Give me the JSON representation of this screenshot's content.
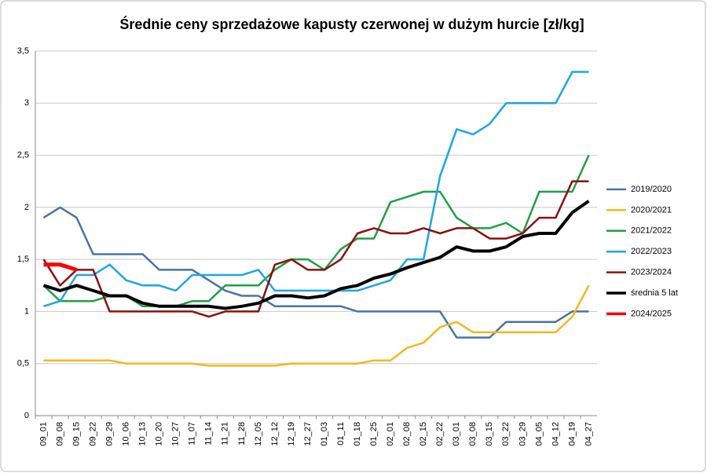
{
  "chart_data": {
    "type": "line",
    "title": "Średnie ceny sprzedażowe kapusty czerwonej w dużym hurcie [zł/kg]",
    "categories": [
      "09_01",
      "09_08",
      "09_15",
      "09_22",
      "09_29",
      "10_06",
      "10_13",
      "10_20",
      "10_27",
      "11_07",
      "11_14",
      "11_21",
      "11_28",
      "12_05",
      "12_12",
      "12_19",
      "12_27",
      "01_03",
      "01_11",
      "01_18",
      "01_25",
      "02_01",
      "02_08",
      "02_15",
      "02_22",
      "03_01",
      "03_08",
      "03_15",
      "03_22",
      "03_29",
      "04_05",
      "04_12",
      "04_19",
      "04_27"
    ],
    "series": [
      {
        "name": "2019/2020",
        "color": "#4a72a8",
        "width": 2.5,
        "values": [
          1.9,
          2.0,
          1.9,
          1.55,
          1.55,
          1.55,
          1.55,
          1.4,
          1.4,
          1.4,
          1.3,
          1.2,
          1.15,
          1.15,
          1.05,
          1.05,
          1.05,
          1.05,
          1.05,
          1.0,
          1.0,
          1.0,
          1.0,
          1.0,
          1.0,
          0.75,
          0.75,
          0.75,
          0.9,
          0.9,
          0.9,
          0.9,
          1.0,
          1.0
        ]
      },
      {
        "name": "2020/2021",
        "color": "#f5b71c",
        "width": 2.5,
        "values": [
          0.53,
          0.53,
          0.53,
          0.53,
          0.53,
          0.5,
          0.5,
          0.5,
          0.5,
          0.5,
          0.48,
          0.48,
          0.48,
          0.48,
          0.48,
          0.5,
          0.5,
          0.5,
          0.5,
          0.5,
          0.53,
          0.53,
          0.65,
          0.7,
          0.85,
          0.9,
          0.8,
          0.8,
          0.8,
          0.8,
          0.8,
          0.8,
          0.95,
          1.25
        ]
      },
      {
        "name": "2021/2022",
        "color": "#1fa044",
        "width": 2.5,
        "values": [
          1.25,
          1.1,
          1.1,
          1.1,
          1.15,
          1.15,
          1.05,
          1.05,
          1.05,
          1.1,
          1.1,
          1.25,
          1.25,
          1.25,
          1.4,
          1.5,
          1.5,
          1.4,
          1.6,
          1.7,
          1.7,
          2.05,
          2.1,
          2.15,
          2.15,
          1.9,
          1.8,
          1.8,
          1.85,
          1.75,
          2.15,
          2.15,
          2.15,
          2.5
        ]
      },
      {
        "name": "2022/2023",
        "color": "#1ba7e0",
        "width": 2.5,
        "values": [
          1.05,
          1.1,
          1.35,
          1.35,
          1.45,
          1.3,
          1.25,
          1.25,
          1.2,
          1.35,
          1.35,
          1.35,
          1.35,
          1.4,
          1.2,
          1.2,
          1.2,
          1.2,
          1.2,
          1.2,
          1.25,
          1.3,
          1.5,
          1.5,
          2.3,
          2.75,
          2.7,
          2.8,
          3.0,
          3.0,
          3.0,
          3.0,
          3.3,
          3.3
        ]
      },
      {
        "name": "2023/2024",
        "color": "#8b1010",
        "width": 2.5,
        "values": [
          1.5,
          1.25,
          1.4,
          1.4,
          1.0,
          1.0,
          1.0,
          1.0,
          1.0,
          1.0,
          0.95,
          1.0,
          1.0,
          1.0,
          1.45,
          1.5,
          1.4,
          1.4,
          1.5,
          1.75,
          1.8,
          1.75,
          1.75,
          1.8,
          1.75,
          1.8,
          1.8,
          1.7,
          1.7,
          1.75,
          1.9,
          1.9,
          2.25,
          2.25
        ]
      },
      {
        "name": "średnia 5 lat",
        "color": "#000000",
        "width": 4,
        "values": [
          1.25,
          1.2,
          1.25,
          1.2,
          1.15,
          1.15,
          1.08,
          1.05,
          1.05,
          1.05,
          1.05,
          1.03,
          1.05,
          1.08,
          1.15,
          1.15,
          1.13,
          1.15,
          1.22,
          1.25,
          1.32,
          1.36,
          1.42,
          1.47,
          1.52,
          1.62,
          1.58,
          1.58,
          1.62,
          1.72,
          1.75,
          1.75,
          1.95,
          2.06
        ]
      },
      {
        "name": "2024/2025",
        "color": "#ff0000",
        "width": 5,
        "values": [
          1.45,
          1.45,
          1.4,
          null,
          null,
          null,
          null,
          null,
          null,
          null,
          null,
          null,
          null,
          null,
          null,
          null,
          null,
          null,
          null,
          null,
          null,
          null,
          null,
          null,
          null,
          null,
          null,
          null,
          null,
          null,
          null,
          null,
          null,
          null
        ]
      }
    ],
    "ylim": [
      0,
      3.5
    ],
    "yticks": [
      0,
      {
        "value": 0.5,
        "label": "0,5"
      },
      1,
      {
        "value": 1.5,
        "label": "1,5"
      },
      2,
      {
        "value": 2.5,
        "label": "2,5"
      },
      3,
      {
        "value": 3.5,
        "label": "3,5"
      }
    ],
    "grid": true,
    "legend": "right"
  }
}
